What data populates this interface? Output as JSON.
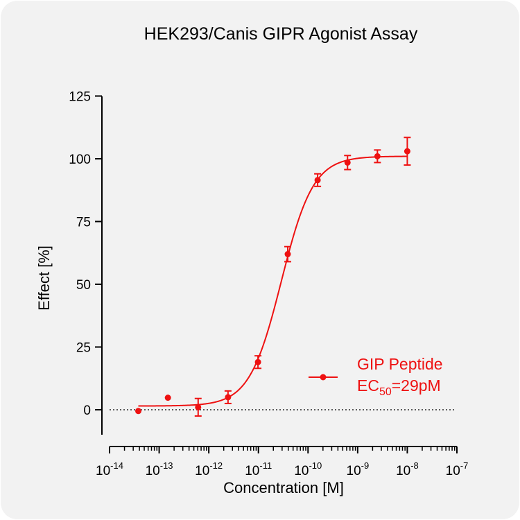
{
  "chart_data": {
    "type": "scatter",
    "title": "HEK293/Canis GIPR Agonist Assay",
    "xlabel": "Concentration [M]",
    "ylabel": "Effect  [%]",
    "x_scale": "log",
    "xlim": [
      1e-14,
      1e-07
    ],
    "ylim": [
      -10,
      125
    ],
    "y_ticks": [
      0,
      25,
      50,
      75,
      100,
      125
    ],
    "x_tick_exponents": [
      -14,
      -13,
      -12,
      -11,
      -10,
      -9,
      -8,
      -7
    ],
    "x_tick_base": "10",
    "grid": false,
    "baseline": 0,
    "legend_position": "right",
    "series": [
      {
        "name": "GIP Peptide",
        "annotation": {
          "prefix": "EC",
          "subscript": "50",
          "suffix": "=29pM"
        },
        "color": "#ee1111",
        "points": [
          {
            "x": 3.8e-14,
            "y": -0.5,
            "err": 0
          },
          {
            "x": 1.5e-13,
            "y": 4.8,
            "err": 0
          },
          {
            "x": 6.1e-13,
            "y": 1.0,
            "err": 3.5
          },
          {
            "x": 2.44e-12,
            "y": 5.0,
            "err": 2.5
          },
          {
            "x": 9.8e-12,
            "y": 19.0,
            "err": 2.5
          },
          {
            "x": 3.9e-11,
            "y": 62.0,
            "err": 3.0
          },
          {
            "x": 1.56e-10,
            "y": 91.5,
            "err": 2.5
          },
          {
            "x": 6.25e-10,
            "y": 98.5,
            "err": 2.8
          },
          {
            "x": 2.5e-09,
            "y": 101.0,
            "err": 2.5
          },
          {
            "x": 1e-08,
            "y": 103.0,
            "err": 5.5
          }
        ],
        "fit": {
          "bottom": 1.5,
          "top": 101,
          "ec50": 2.9e-11,
          "hill": 1.35,
          "x_range": [
            3.8e-14,
            1e-08
          ]
        }
      }
    ]
  }
}
